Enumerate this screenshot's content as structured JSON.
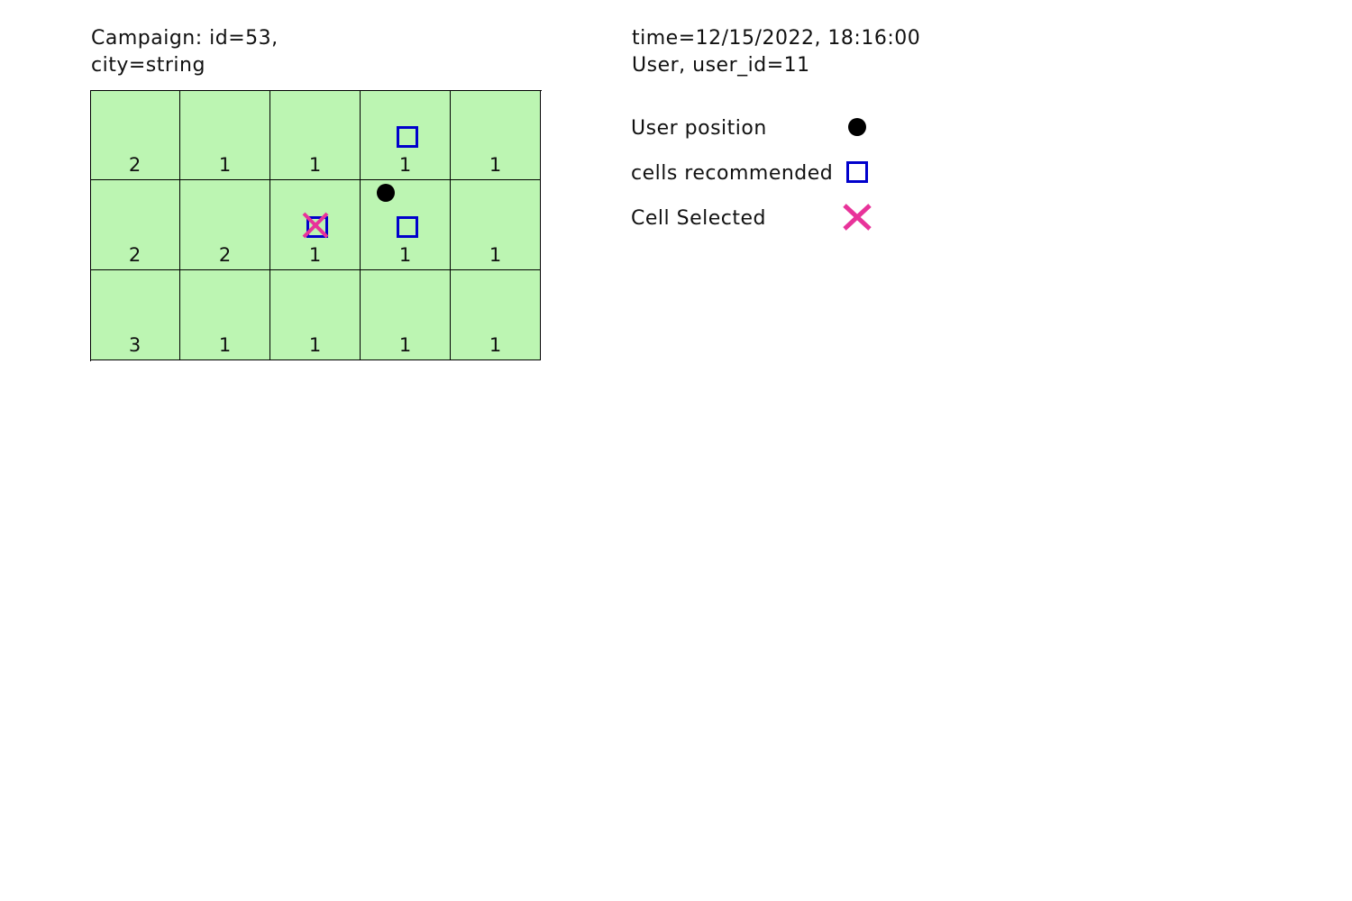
{
  "header": {
    "campaign_line1": "Campaign: id=53,",
    "campaign_line2": "city=string",
    "time_line": "time=12/15/2022, 18:16:00",
    "user_line": "User, user_id=11"
  },
  "grid": {
    "rows": 3,
    "cols": 5,
    "cell_color": "#bcf5b2",
    "counts": [
      [
        "2",
        "1",
        "1",
        "1",
        "1"
      ],
      [
        "2",
        "2",
        "1",
        "1",
        "1"
      ],
      [
        "3",
        "1",
        "1",
        "1",
        "1"
      ]
    ],
    "recommended_cells": [
      {
        "row": 0,
        "col": 3
      },
      {
        "row": 1,
        "col": 2
      },
      {
        "row": 1,
        "col": 3
      }
    ],
    "selected_cells": [
      {
        "row": 1,
        "col": 2
      }
    ]
  },
  "legend": {
    "user_position": "User position",
    "cells_recommended": "cells recommended",
    "cell_selected": "Cell Selected"
  },
  "colors": {
    "recommended": "#0000cc",
    "selected": "#e8339a",
    "user": "#000000"
  },
  "icons": {
    "user_position": "filled-circle",
    "recommended": "square-outline",
    "selected": "x-cross"
  }
}
